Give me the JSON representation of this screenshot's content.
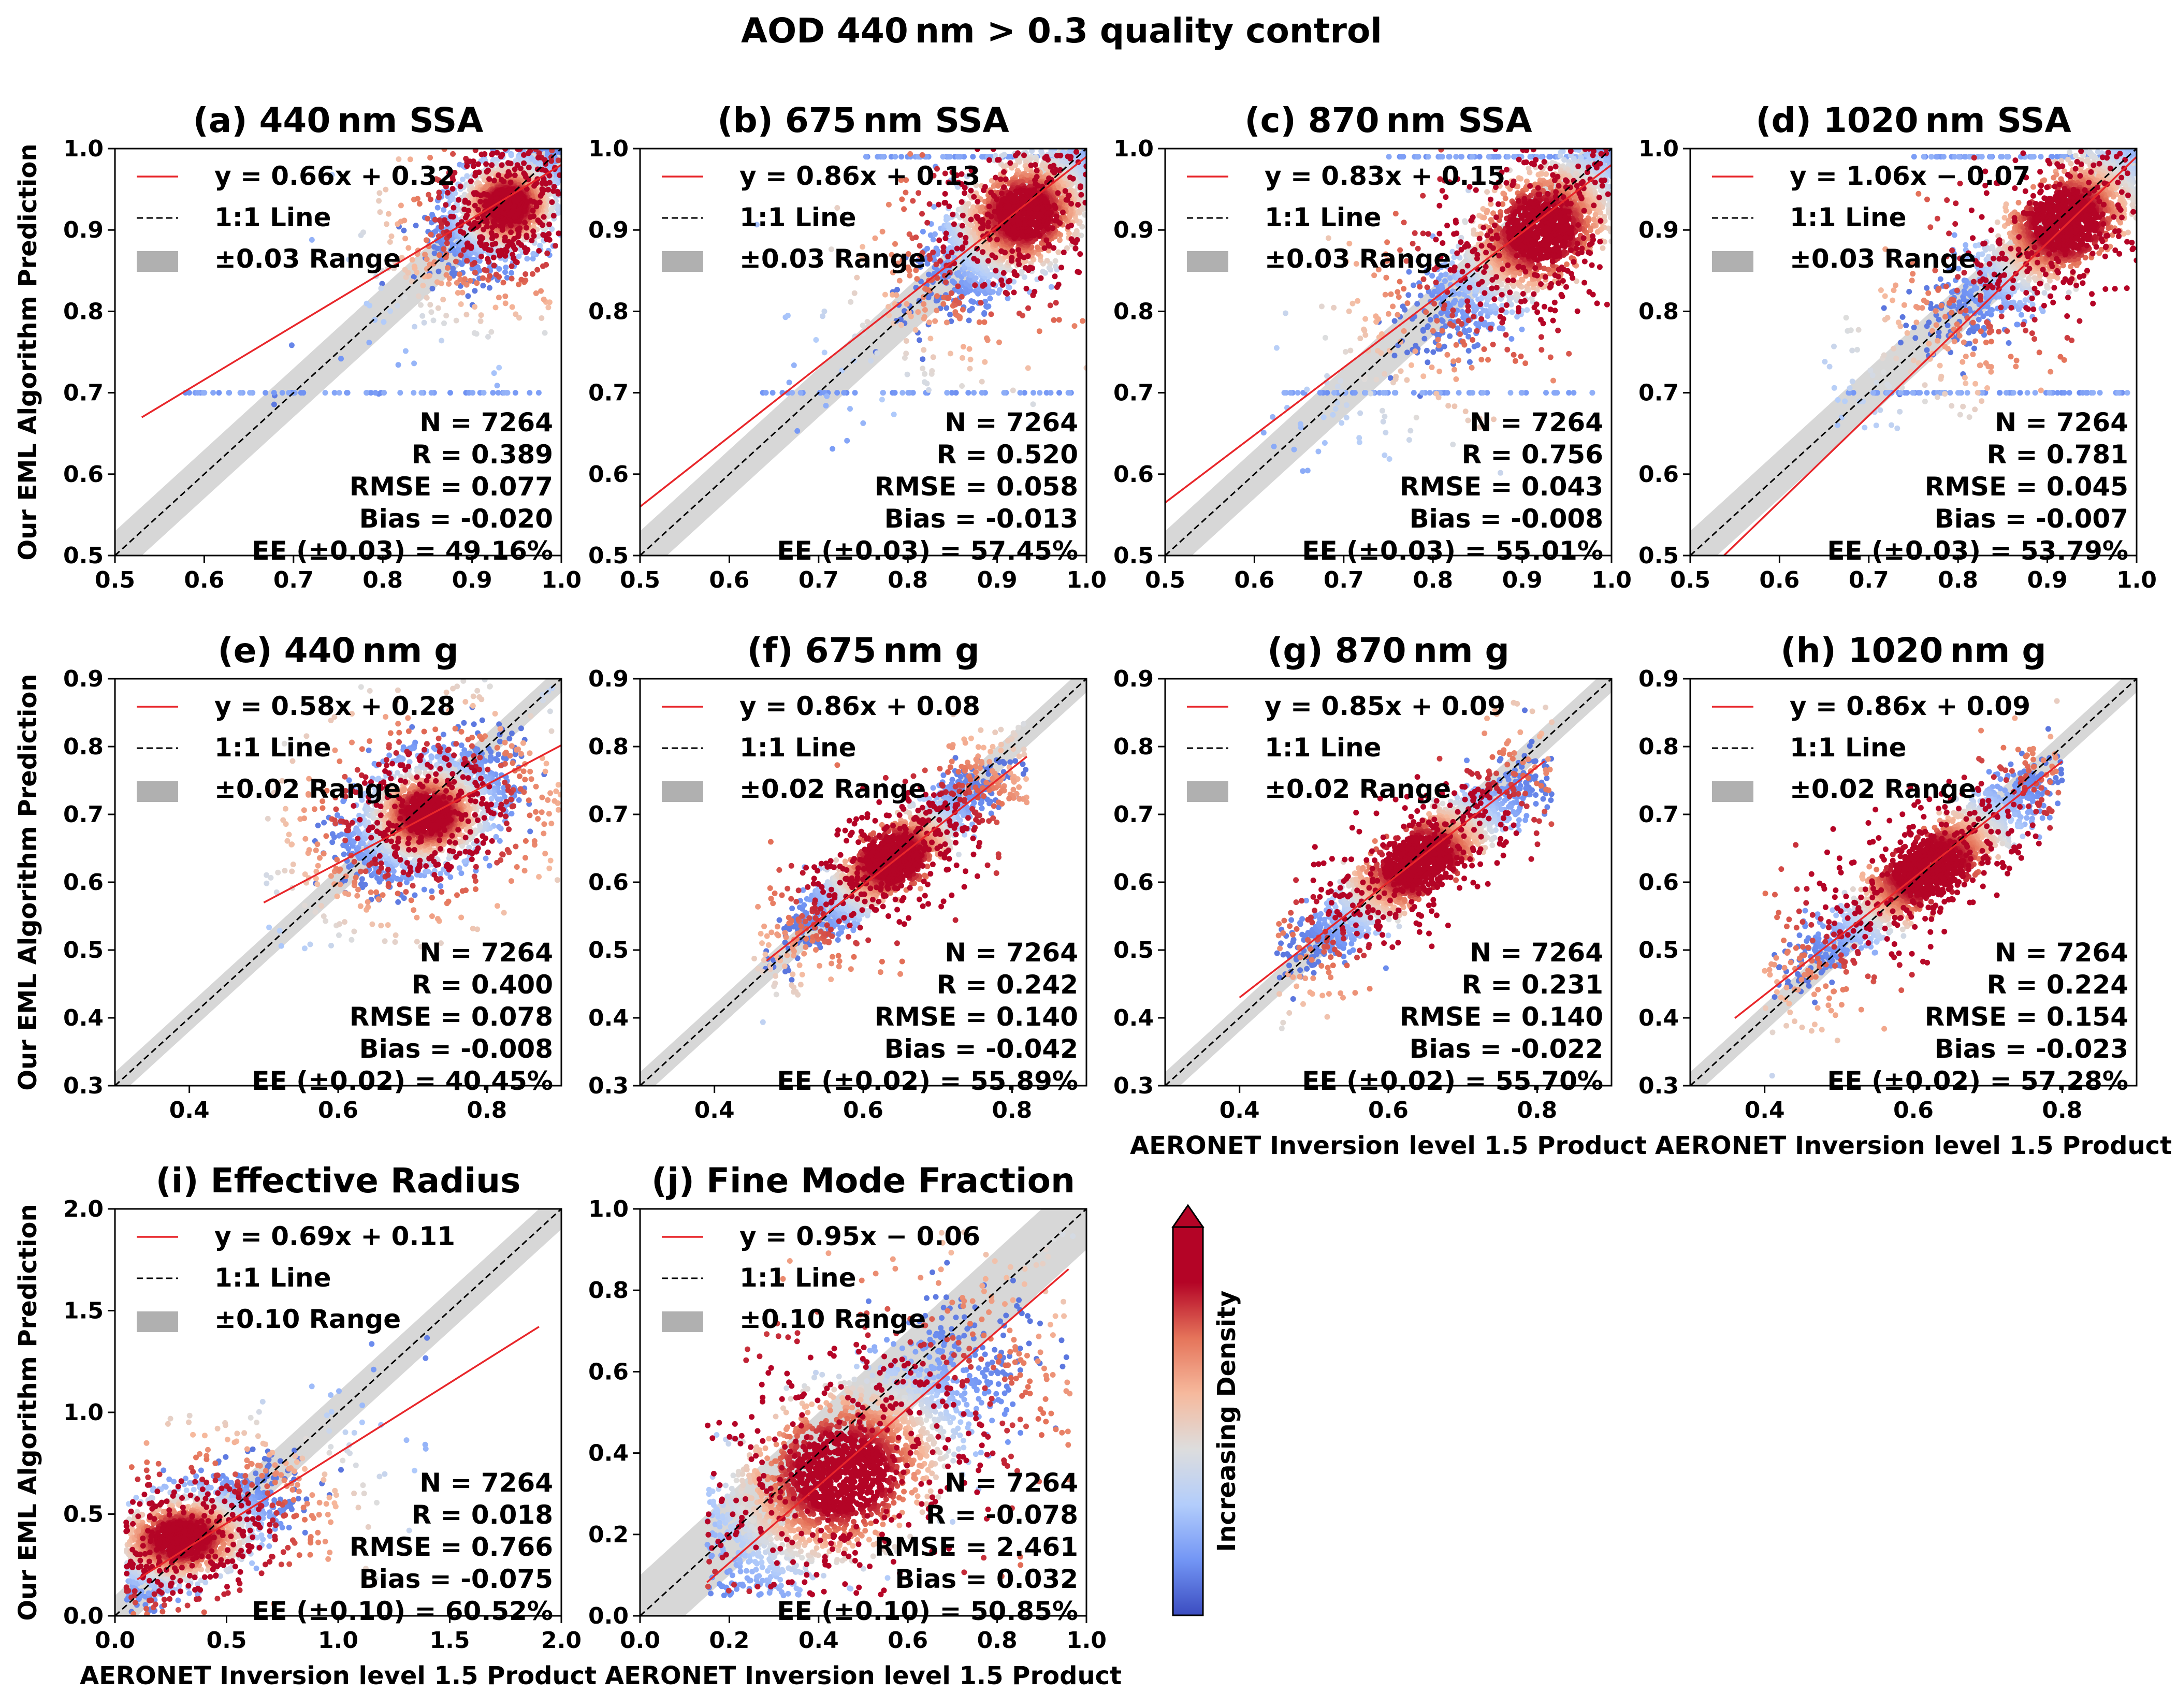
{
  "title": "AOD 440 nm > 0.3 quality control",
  "legend_labels": {
    "line": "1:1 Line"
  },
  "stat_labels": {
    "n": "N",
    "r": "R",
    "rmse": "RMSE",
    "bias": "Bias"
  },
  "colorbar": {
    "label": "Increasing Density",
    "colors": [
      "#3b4cc0",
      "#7396f5",
      "#b3cdfb",
      "#dddddd",
      "#f6b99d",
      "#e5745a",
      "#b40426",
      "#b40426"
    ]
  },
  "colors": {
    "fit": "#e8262a",
    "ee_band": "#bdbdbd",
    "one_to_one": "#000000"
  },
  "chart_data": [
    {
      "type": "scatter",
      "id": "a",
      "title": "(a) 440 nm SSA",
      "xlabel": "",
      "ylabel": "Our EML Algorithm Prediction",
      "xlim": [
        0.5,
        1.0
      ],
      "ylim": [
        0.5,
        1.0
      ],
      "xticks": [
        "0.5",
        "0.6",
        "0.7",
        "0.8",
        "0.9",
        "1.0"
      ],
      "yticks": [
        "0.5",
        "0.6",
        "0.7",
        "0.8",
        "0.9",
        "1.0"
      ],
      "fit": {
        "slope": 0.66,
        "intercept": 0.32,
        "x_range": [
          0.53,
          1.0
        ],
        "label": "y = 0.66x + 0.32"
      },
      "ee": {
        "value": 0.03,
        "label": "±0.03 Range"
      },
      "stats": {
        "N": "7264",
        "R": "0.389",
        "RMSE": "0.077",
        "Bias": "-0.020",
        "EE": "EE (±0.03) = 49.16%"
      },
      "cloud": {
        "cx": 0.94,
        "cy": 0.93,
        "sx": 0.035,
        "sy": 0.035,
        "rho": 0.5,
        "n": 2600,
        "xmin": 0.53,
        "xmax": 1.0,
        "ymin": 0.5,
        "ymax": 1.0,
        "floor": 0.7,
        "floorN": 60,
        "cap": 0,
        "capN": 0
      }
    },
    {
      "type": "scatter",
      "id": "b",
      "title": "(b) 675 nm SSA",
      "xlabel": "",
      "ylabel": "",
      "xlim": [
        0.5,
        1.0
      ],
      "ylim": [
        0.5,
        1.0
      ],
      "xticks": [
        "0.5",
        "0.6",
        "0.7",
        "0.8",
        "0.9",
        "1.0"
      ],
      "yticks": [
        "0.5",
        "0.6",
        "0.7",
        "0.8",
        "0.9",
        "1.0"
      ],
      "fit": {
        "slope": 0.86,
        "intercept": 0.13,
        "x_range": [
          0.5,
          1.0
        ],
        "label": "y = 0.86x + 0.13"
      },
      "ee": {
        "value": 0.03,
        "label": "±0.03 Range"
      },
      "stats": {
        "N": "7264",
        "R": "0.520",
        "RMSE": "0.058",
        "Bias": "-0.013",
        "EE": "EE (±0.03) = 57.45%"
      },
      "cloud": {
        "cx": 0.93,
        "cy": 0.92,
        "sx": 0.05,
        "sy": 0.05,
        "rho": 0.7,
        "n": 2600,
        "xmin": 0.6,
        "xmax": 1.0,
        "ymin": 0.5,
        "ymax": 1.0,
        "floor": 0.7,
        "floorN": 50,
        "cap": 0.99,
        "capN": 60
      }
    },
    {
      "type": "scatter",
      "id": "c",
      "title": "(c) 870 nm SSA",
      "xlabel": "",
      "ylabel": "",
      "xlim": [
        0.5,
        1.0
      ],
      "ylim": [
        0.5,
        1.0
      ],
      "xticks": [
        "0.5",
        "0.6",
        "0.7",
        "0.8",
        "0.9",
        "1.0"
      ],
      "yticks": [
        "0.5",
        "0.6",
        "0.7",
        "0.8",
        "0.9",
        "1.0"
      ],
      "fit": {
        "slope": 0.83,
        "intercept": 0.15,
        "x_range": [
          0.5,
          1.0
        ],
        "label": "y = 0.83x + 0.15"
      },
      "ee": {
        "value": 0.03,
        "label": "±0.03 Range"
      },
      "stats": {
        "N": "7264",
        "R": "0.756",
        "RMSE": "0.043",
        "Bias": "-0.008",
        "EE": "EE (±0.03) = 55.01%"
      },
      "cloud": {
        "cx": 0.92,
        "cy": 0.9,
        "sx": 0.06,
        "sy": 0.06,
        "rho": 0.8,
        "n": 2600,
        "xmin": 0.6,
        "xmax": 1.0,
        "ymin": 0.6,
        "ymax": 1.0,
        "floor": 0.7,
        "floorN": 60,
        "cap": 0.99,
        "capN": 60
      }
    },
    {
      "type": "scatter",
      "id": "d",
      "title": "(d) 1020 nm SSA",
      "xlabel": "",
      "ylabel": "",
      "xlim": [
        0.5,
        1.0
      ],
      "ylim": [
        0.5,
        1.0
      ],
      "xticks": [
        "0.5",
        "0.6",
        "0.7",
        "0.8",
        "0.9",
        "1.0"
      ],
      "yticks": [
        "0.5",
        "0.6",
        "0.7",
        "0.8",
        "0.9",
        "1.0"
      ],
      "fit": {
        "slope": 1.06,
        "intercept": -0.07,
        "x_range": [
          0.53,
          1.0
        ],
        "label": "y = 1.06x − 0.07"
      },
      "ee": {
        "value": 0.03,
        "label": "±0.03 Range"
      },
      "stats": {
        "N": "7264",
        "R": "0.781",
        "RMSE": "0.045",
        "Bias": "-0.007",
        "EE": "EE (±0.03) = 53.79%"
      },
      "cloud": {
        "cx": 0.92,
        "cy": 0.91,
        "sx": 0.06,
        "sy": 0.06,
        "rho": 0.85,
        "n": 2600,
        "xmin": 0.65,
        "xmax": 1.0,
        "ymin": 0.65,
        "ymax": 1.0,
        "floor": 0.7,
        "floorN": 70,
        "cap": 0.99,
        "capN": 70
      }
    },
    {
      "type": "scatter",
      "id": "e",
      "title": "(e) 440 nm g",
      "xlabel": "",
      "ylabel": "Our EML Algorithm Prediction",
      "xlim": [
        0.3,
        0.9
      ],
      "ylim": [
        0.3,
        0.9
      ],
      "xticks": [
        "0.4",
        "0.6",
        "0.8"
      ],
      "yticks": [
        "0.3",
        "0.4",
        "0.5",
        "0.6",
        "0.7",
        "0.8",
        "0.9"
      ],
      "xtickvals": [
        0.4,
        0.6,
        0.8
      ],
      "ytickvals": [
        0.3,
        0.4,
        0.5,
        0.6,
        0.7,
        0.8,
        0.9
      ],
      "fit": {
        "slope": 0.58,
        "intercept": 0.28,
        "x_range": [
          0.5,
          0.9
        ],
        "label": "y = 0.58x + 0.28"
      },
      "ee": {
        "value": 0.02,
        "label": "±0.02 Range"
      },
      "stats": {
        "N": "7264",
        "R": "0.400",
        "RMSE": "0.078",
        "Bias": "-0.008",
        "EE": "EE (±0.02) = 40.45%"
      },
      "cloud": {
        "cx": 0.72,
        "cy": 0.7,
        "sx": 0.05,
        "sy": 0.045,
        "rho": 0.4,
        "n": 2400,
        "xmin": 0.5,
        "xmax": 0.9,
        "ymin": 0.5,
        "ymax": 0.9,
        "floor": 0,
        "floorN": 0,
        "cap": 0,
        "capN": 0
      }
    },
    {
      "type": "scatter",
      "id": "f",
      "title": "(f) 675 nm g",
      "xlabel": "",
      "ylabel": "",
      "xlim": [
        0.3,
        0.9
      ],
      "ylim": [
        0.3,
        0.9
      ],
      "xticks": [
        "0.4",
        "0.6",
        "0.8"
      ],
      "yticks": [
        "0.3",
        "0.4",
        "0.5",
        "0.6",
        "0.7",
        "0.8",
        "0.9"
      ],
      "xtickvals": [
        0.4,
        0.6,
        0.8
      ],
      "ytickvals": [
        0.3,
        0.4,
        0.5,
        0.6,
        0.7,
        0.8,
        0.9
      ],
      "fit": {
        "slope": 0.86,
        "intercept": 0.08,
        "x_range": [
          0.47,
          0.82
        ],
        "label": "y = 0.86x + 0.08"
      },
      "ee": {
        "value": 0.02,
        "label": "±0.02 Range"
      },
      "stats": {
        "N": "7264",
        "R": "0.242",
        "RMSE": "0.140",
        "Bias": "-0.042",
        "EE": "EE (±0.02) = 55.89%"
      },
      "cloud": {
        "cx": 0.64,
        "cy": 0.635,
        "sx": 0.06,
        "sy": 0.055,
        "rho": 0.9,
        "n": 2400,
        "xmin": 0.45,
        "xmax": 0.82,
        "ymin": 0.3,
        "ymax": 0.85,
        "floor": 0,
        "floorN": 0,
        "cap": 0,
        "capN": 0
      }
    },
    {
      "type": "scatter",
      "id": "g",
      "title": "(g) 870 nm g",
      "xlabel": "AERONET Inversion level 1.5 Product",
      "ylabel": "",
      "xlim": [
        0.3,
        0.9
      ],
      "ylim": [
        0.3,
        0.9
      ],
      "xticks": [
        "0.4",
        "0.6",
        "0.8"
      ],
      "yticks": [
        "0.3",
        "0.4",
        "0.5",
        "0.6",
        "0.7",
        "0.8",
        "0.9"
      ],
      "xtickvals": [
        0.4,
        0.6,
        0.8
      ],
      "ytickvals": [
        0.3,
        0.4,
        0.5,
        0.6,
        0.7,
        0.8,
        0.9
      ],
      "fit": {
        "slope": 0.85,
        "intercept": 0.09,
        "x_range": [
          0.4,
          0.81
        ],
        "label": "y = 0.85x + 0.09"
      },
      "ee": {
        "value": 0.02,
        "label": "±0.02 Range"
      },
      "stats": {
        "N": "7264",
        "R": "0.231",
        "RMSE": "0.140",
        "Bias": "-0.022",
        "EE": "EE (±0.02) = 55.70%"
      },
      "cloud": {
        "cx": 0.64,
        "cy": 0.63,
        "sx": 0.075,
        "sy": 0.065,
        "rho": 0.92,
        "n": 2400,
        "xmin": 0.45,
        "xmax": 0.82,
        "ymin": 0.3,
        "ymax": 0.88,
        "floor": 0,
        "floorN": 0,
        "cap": 0,
        "capN": 0
      }
    },
    {
      "type": "scatter",
      "id": "h",
      "title": "(h) 1020 nm g",
      "xlabel": "AERONET Inversion level 1.5 Product",
      "ylabel": "",
      "xlim": [
        0.3,
        0.9
      ],
      "ylim": [
        0.3,
        0.9
      ],
      "xticks": [
        "0.4",
        "0.6",
        "0.8"
      ],
      "yticks": [
        "0.3",
        "0.4",
        "0.5",
        "0.6",
        "0.7",
        "0.8",
        "0.9"
      ],
      "xtickvals": [
        0.4,
        0.6,
        0.8
      ],
      "ytickvals": [
        0.3,
        0.4,
        0.5,
        0.6,
        0.7,
        0.8,
        0.9
      ],
      "fit": {
        "slope": 0.86,
        "intercept": 0.09,
        "x_range": [
          0.36,
          0.8
        ],
        "label": "y = 0.86x + 0.09"
      },
      "ee": {
        "value": 0.02,
        "label": "±0.02 Range"
      },
      "stats": {
        "N": "7264",
        "R": "0.224",
        "RMSE": "0.154",
        "Bias": "-0.023",
        "EE": "EE (±0.02) = 57.28%"
      },
      "cloud": {
        "cx": 0.62,
        "cy": 0.62,
        "sx": 0.08,
        "sy": 0.07,
        "rho": 0.93,
        "n": 2400,
        "xmin": 0.4,
        "xmax": 0.8,
        "ymin": 0.3,
        "ymax": 0.88,
        "floor": 0,
        "floorN": 0,
        "cap": 0,
        "capN": 0
      }
    },
    {
      "type": "scatter",
      "id": "i",
      "title": "(i) Effective Radius",
      "xlabel": "AERONET Inversion level 1.5 Product",
      "ylabel": "Our EML Algorithm Prediction",
      "xlim": [
        0.0,
        2.0
      ],
      "ylim": [
        0.0,
        2.0
      ],
      "xticks": [
        "0.0",
        "0.5",
        "1.0",
        "1.5",
        "2.0"
      ],
      "yticks": [
        "0.0",
        "0.5",
        "1.0",
        "1.5",
        "2.0"
      ],
      "fit": {
        "slope": 0.69,
        "intercept": 0.11,
        "x_range": [
          0.1,
          1.9
        ],
        "label": "y = 0.69x + 0.11"
      },
      "ee": {
        "value": 0.1,
        "label": "±0.10 Range"
      },
      "stats": {
        "N": "7264",
        "R": "0.018",
        "RMSE": "0.766",
        "Bias": "-0.075",
        "EE": "EE (±0.10) = 60.52%"
      },
      "cloud": {
        "cx": 0.3,
        "cy": 0.38,
        "sx": 0.2,
        "sy": 0.14,
        "rho": 0.6,
        "n": 2400,
        "xmin": 0.05,
        "xmax": 1.4,
        "ymin": 0.0,
        "ymax": 2.0,
        "floor": 0,
        "floorN": 0,
        "cap": 0,
        "capN": 0
      }
    },
    {
      "type": "scatter",
      "id": "j",
      "title": "(j) Fine Mode Fraction",
      "xlabel": "AERONET Inversion level 1.5 Product",
      "ylabel": "",
      "xlim": [
        0.0,
        1.0
      ],
      "ylim": [
        0.0,
        1.0
      ],
      "xticks": [
        "0.0",
        "0.2",
        "0.4",
        "0.6",
        "0.8",
        "1.0"
      ],
      "yticks": [
        "0.0",
        "0.2",
        "0.4",
        "0.6",
        "0.8",
        "1.0"
      ],
      "fit": {
        "slope": 0.95,
        "intercept": -0.06,
        "x_range": [
          0.15,
          0.96
        ],
        "label": "y = 0.95x − 0.06"
      },
      "ee": {
        "value": 0.1,
        "label": "±0.10 Range"
      },
      "stats": {
        "N": "7264",
        "R": "-0.078",
        "RMSE": "2.461",
        "Bias": "0.032",
        "EE": "EE (±0.10) = 50.85%"
      },
      "cloud": {
        "cx": 0.45,
        "cy": 0.35,
        "sx": 0.17,
        "sy": 0.16,
        "rho": 0.75,
        "n": 3000,
        "xmin": 0.15,
        "xmax": 0.97,
        "ymin": 0.05,
        "ymax": 0.95,
        "floor": 0,
        "floorN": 0,
        "cap": 0,
        "capN": 0
      }
    }
  ]
}
